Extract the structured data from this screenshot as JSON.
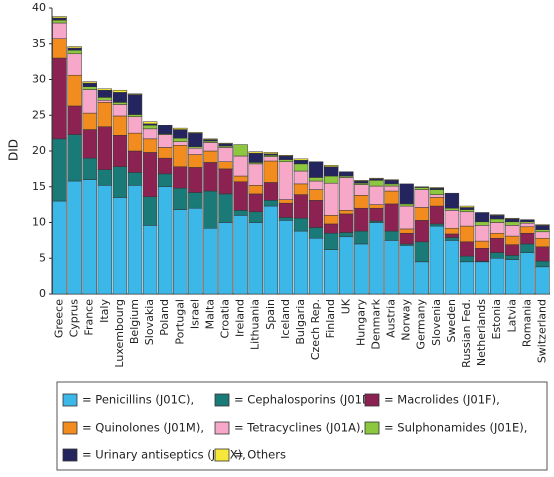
{
  "chart_data": {
    "type": "stacked-bar",
    "y_label": "DID",
    "categories": [
      "Greece",
      "Cyprus",
      "France",
      "Italy",
      "Luxembourg",
      "Belgium",
      "Slovakia",
      "Poland",
      "Portugal",
      "Israel",
      "Malta",
      "Croatia",
      "Ireland",
      "Lithuania",
      "Spain",
      "Iceland",
      "Bulgaria",
      "Czech Rep.",
      "Finland",
      "UK",
      "Hungary",
      "Denmark",
      "Austria",
      "Norway",
      "Germany",
      "Slovenia",
      "Sweden",
      "Russian Fed.",
      "Netherlands",
      "Estonia",
      "Latvia",
      "Romania",
      "Switzerland"
    ],
    "series": [
      {
        "name": "= Penicillins (J01C),",
        "color": "#3cb8e8",
        "values": [
          13,
          15.8,
          16,
          15.2,
          13.5,
          15.2,
          9.6,
          15,
          11.8,
          12,
          9.2,
          10,
          11,
          10,
          12.3,
          10.3,
          8.8,
          7.8,
          6.2,
          8,
          7,
          10,
          7.5,
          6.8,
          4.5,
          9.5,
          7.5,
          4.5,
          4.5,
          5,
          4.8,
          5.8,
          3.8
        ]
      },
      {
        "name": "= Cephalosporins (J01D),",
        "color": "#1a7a78",
        "values": [
          8.7,
          6.5,
          3,
          2.2,
          4.3,
          1.8,
          4,
          1.8,
          3,
          2.2,
          5.2,
          4,
          0.7,
          1.5,
          0.8,
          0.4,
          1.8,
          1.5,
          2.3,
          0.6,
          1.8,
          0.2,
          1.3,
          0.2,
          2.8,
          0.3,
          0.4,
          0.8,
          0.1,
          0.8,
          0.6,
          1.2,
          0.8
        ]
      },
      {
        "name": "= Macrolides (J01F),",
        "color": "#8b2252",
        "values": [
          11.3,
          4,
          4,
          6,
          4.4,
          3,
          6.2,
          2.2,
          3,
          3.5,
          4,
          3.5,
          4,
          2.5,
          2.5,
          2,
          3.3,
          3.8,
          1.3,
          2.6,
          3.2,
          1.8,
          3.8,
          1.5,
          3,
          2.5,
          0.5,
          2,
          1.8,
          2,
          1.5,
          1.5,
          2
        ]
      },
      {
        "name": "= Quinolones (J01M),",
        "color": "#f28c1e",
        "values": [
          2.7,
          4.3,
          2.3,
          3.4,
          2.7,
          2.5,
          1.9,
          1.5,
          3,
          1.8,
          1.6,
          1,
          0.8,
          1.2,
          3,
          0.5,
          1.5,
          1.5,
          1.2,
          0.5,
          1.8,
          0.5,
          1.8,
          0.6,
          1.8,
          1.2,
          0.8,
          2.2,
          1,
          0.7,
          1.2,
          0.9,
          1.2
        ]
      },
      {
        "name": "= Tetracyclines (J01A),",
        "color": "#f7a8c8",
        "values": [
          2.2,
          3,
          3.3,
          0.3,
          1.6,
          2.3,
          1.4,
          1.8,
          0.5,
          0.9,
          1.2,
          2,
          2.8,
          3,
          0.6,
          5.3,
          1.8,
          1.2,
          4.5,
          4.6,
          1.5,
          2.6,
          0.7,
          3.2,
          2.5,
          0.4,
          2.5,
          2,
          2.2,
          1.5,
          1.5,
          0.5,
          0.9
        ]
      },
      {
        "name": "= Sulphonamides (J01E),",
        "color": "#8dc63f",
        "values": [
          0.4,
          0.5,
          0.4,
          0.4,
          0.3,
          0.3,
          0.5,
          0.1,
          0.5,
          0.2,
          0.2,
          0.2,
          1.6,
          0.2,
          0.2,
          0.3,
          1,
          0.5,
          1,
          0.2,
          0.2,
          0.8,
          0.3,
          0.3,
          0.3,
          0.7,
          0.3,
          0.3,
          0.5,
          0.5,
          0.5,
          0.2,
          0.3
        ]
      },
      {
        "name": "= Urinary antiseptics (J01X),",
        "color": "#24245e",
        "values": [
          0.3,
          0.3,
          0.5,
          1,
          1.4,
          2.8,
          0.2,
          1.2,
          1.2,
          1.9,
          0.2,
          0.3,
          0,
          1.3,
          0.2,
          0.5,
          0.5,
          2.2,
          1.3,
          0.6,
          0.3,
          0.2,
          0.5,
          2.8,
          0.1,
          0.2,
          2.1,
          0.3,
          1.3,
          0.5,
          0.4,
          0.3,
          0.6
        ]
      },
      {
        "name": "= Others",
        "color": "#f5e83a",
        "values": [
          0.2,
          0.2,
          0.2,
          0.2,
          0.3,
          0.1,
          0.3,
          0,
          0.2,
          0.1,
          0.1,
          0.1,
          0,
          0.2,
          0.2,
          0.1,
          0.2,
          0,
          0.2,
          0,
          0.1,
          0.1,
          0.1,
          0,
          0,
          0.1,
          0,
          0.2,
          0,
          0.1,
          0.1,
          0,
          0.1
        ]
      }
    ],
    "ylim": [
      0,
      40
    ],
    "yticks": [
      0,
      5,
      10,
      15,
      20,
      25,
      30,
      35,
      40
    ]
  }
}
